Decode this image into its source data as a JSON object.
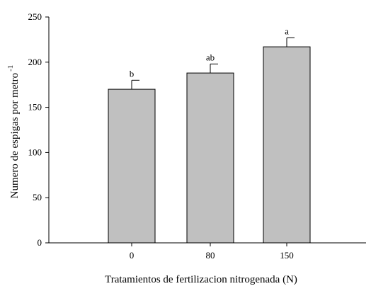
{
  "chart_data": {
    "type": "bar",
    "title": "",
    "xlabel": "Tratamientos de fertilizacion nitrogenada (N)",
    "ylabel": "Numero de espigas por metro",
    "ylabel_superscript": "-1",
    "categories": [
      "0",
      "80",
      "150"
    ],
    "values": [
      170,
      188,
      217
    ],
    "error": [
      10,
      10,
      10
    ],
    "significance": [
      "b",
      "ab",
      "a"
    ],
    "ylim": [
      0,
      250
    ],
    "yticks": [
      0,
      50,
      100,
      150,
      200,
      250
    ],
    "grid": false,
    "colors": {
      "bar_fill": "#c0c0c0",
      "bar_stroke": "#000000",
      "axis": "#000000"
    }
  }
}
